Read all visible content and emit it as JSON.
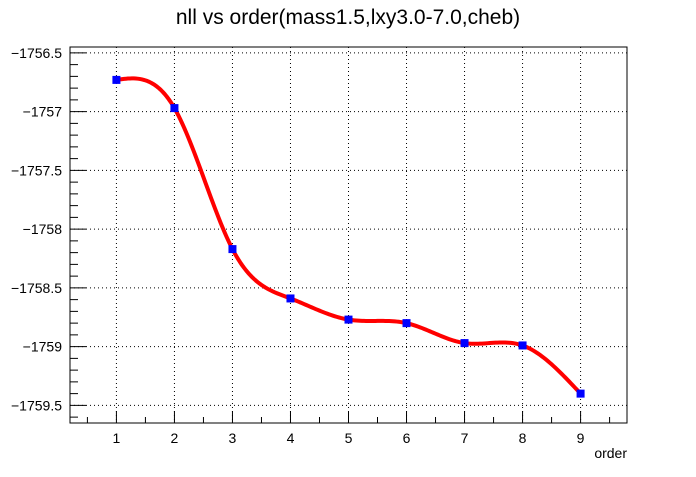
{
  "chart_data": {
    "type": "line",
    "title": "nll vs order(mass1.5,lxy3.0-7.0,cheb)",
    "xlabel": "order",
    "ylabel": "",
    "x": [
      1,
      2,
      3,
      4,
      5,
      6,
      7,
      8,
      9
    ],
    "series": [
      {
        "values": [
          -1756.73,
          -1756.97,
          -1758.17,
          -1758.59,
          -1758.77,
          -1758.8,
          -1758.97,
          -1758.99,
          -1759.4
        ],
        "marker_color": "#0000ff",
        "line_color": "#ff0000"
      }
    ],
    "xlim": [
      0.2,
      9.8
    ],
    "ylim": [
      -1759.65,
      -1756.45
    ],
    "xticks": [
      "1",
      "2",
      "3",
      "4",
      "5",
      "6",
      "7",
      "8",
      "9"
    ],
    "yticks": [
      "-1756.5",
      "-1757",
      "-1757.5",
      "-1758",
      "-1758.5",
      "-1759",
      "-1759.5"
    ],
    "ytick_values": [
      -1756.5,
      -1757,
      -1757.5,
      -1758,
      -1758.5,
      -1759,
      -1759.5
    ],
    "grid": true,
    "legend": "none"
  }
}
